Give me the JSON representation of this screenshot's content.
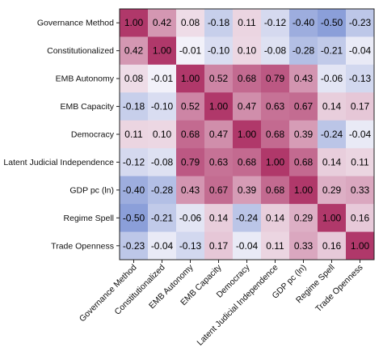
{
  "chart_data": {
    "type": "heatmap",
    "title": "",
    "xlabel": "",
    "ylabel": "",
    "variables": [
      "Governance Method",
      "Constitutionalized",
      "EMB Autonomy",
      "EMB Capacity",
      "Democracy",
      "Latent Judicial Independence",
      "GDP pc (ln)",
      "Regime Spell",
      "Trade Openness"
    ],
    "matrix": [
      [
        1.0,
        0.42,
        0.08,
        -0.18,
        0.11,
        -0.12,
        -0.4,
        -0.5,
        -0.23
      ],
      [
        0.42,
        1.0,
        -0.01,
        -0.1,
        0.1,
        -0.08,
        -0.28,
        -0.21,
        -0.04
      ],
      [
        0.08,
        -0.01,
        1.0,
        0.52,
        0.68,
        0.79,
        0.43,
        -0.06,
        -0.13
      ],
      [
        -0.18,
        -0.1,
        0.52,
        1.0,
        0.47,
        0.63,
        0.67,
        0.14,
        0.17
      ],
      [
        0.11,
        0.1,
        0.68,
        0.47,
        1.0,
        0.68,
        0.39,
        -0.24,
        -0.04
      ],
      [
        -0.12,
        -0.08,
        0.79,
        0.63,
        0.68,
        1.0,
        0.68,
        0.14,
        0.11
      ],
      [
        -0.4,
        -0.28,
        0.43,
        0.67,
        0.39,
        0.68,
        1.0,
        0.29,
        0.33
      ],
      [
        -0.5,
        -0.21,
        -0.06,
        0.14,
        -0.24,
        0.14,
        0.29,
        1.0,
        0.16
      ],
      [
        -0.23,
        -0.04,
        -0.13,
        0.17,
        -0.04,
        0.11,
        0.33,
        0.16,
        1.0
      ]
    ],
    "value_range": [
      -1,
      1
    ],
    "colors": {
      "negative": "#3b5fc0",
      "neutral": "#f7f5fa",
      "positive": "#b0386a"
    }
  }
}
